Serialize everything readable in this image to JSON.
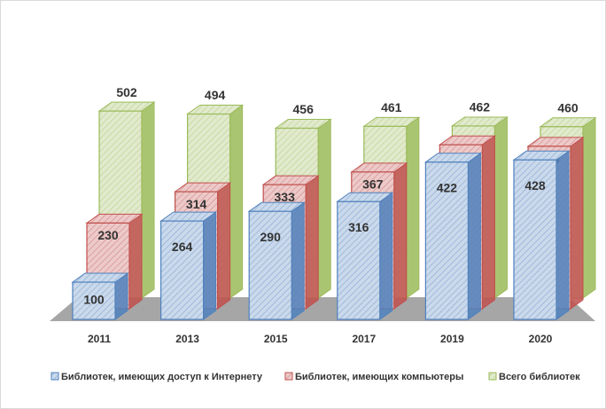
{
  "chart_data": {
    "type": "bar3d",
    "categories": [
      "2011",
      "2013",
      "2015",
      "2017",
      "2019",
      "2020"
    ],
    "series": [
      {
        "name": "Библиотек, имеющих доступ к Интернету",
        "color": "#4f81bd",
        "values": [
          100,
          264,
          290,
          316,
          422,
          428
        ]
      },
      {
        "name": "Библиотек, имеющих компьютеры",
        "color": "#c0504d",
        "values": [
          230,
          314,
          333,
          367,
          440,
          436
        ]
      },
      {
        "name": "Всего библиотек",
        "color": "#9bbb59",
        "values": [
          502,
          494,
          456,
          461,
          462,
          460
        ]
      }
    ],
    "legend": "bottom"
  }
}
